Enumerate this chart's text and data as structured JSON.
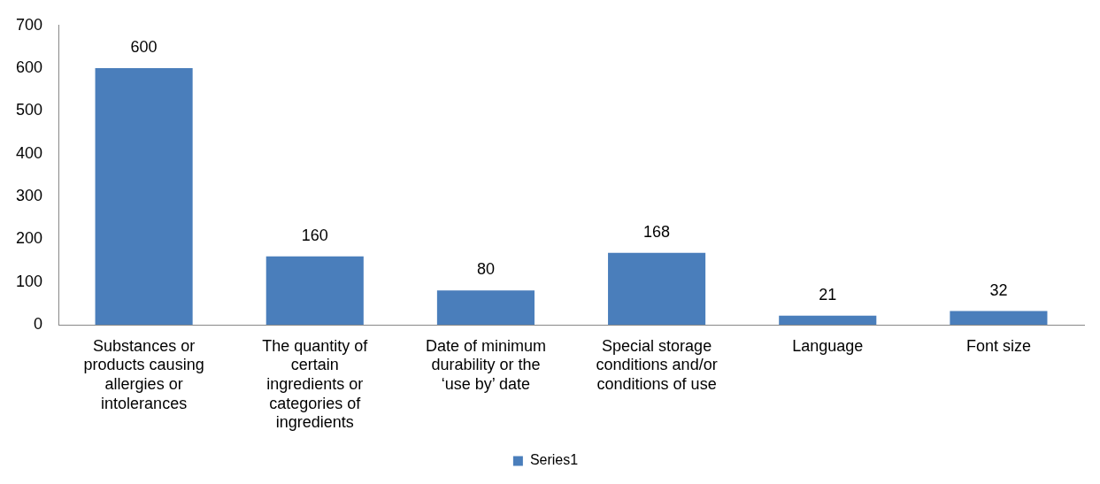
{
  "chart_data": {
    "type": "bar",
    "categories": [
      "Substances or products causing allergies or intolerances",
      "The quantity of certain ingredients or categories of ingredients",
      "Date of minimum durability or the ‘use by’ date",
      "Special storage conditions and/or conditions of use",
      "Language",
      "Font size"
    ],
    "series": [
      {
        "name": "Series1",
        "color": "#4a7ebb",
        "values": [
          600,
          160,
          80,
          168,
          21,
          32
        ]
      }
    ],
    "ylim": [
      0,
      700
    ],
    "yticks": [
      0,
      100,
      200,
      300,
      400,
      500,
      600,
      700
    ],
    "grid": false,
    "legend": "bottom",
    "data_labels": true
  }
}
